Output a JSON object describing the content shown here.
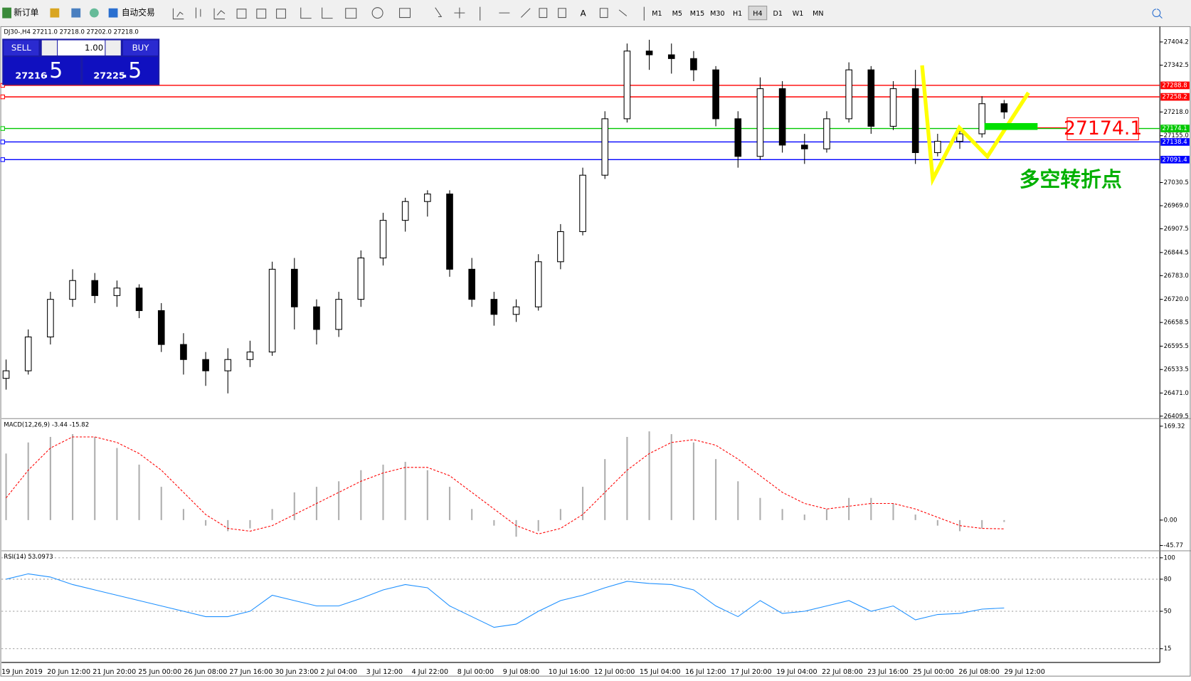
{
  "toolbar": {
    "new_order": "新订单",
    "auto_trading": "自动交易",
    "timeframes": [
      "M1",
      "M5",
      "M15",
      "M30",
      "H1",
      "H4",
      "D1",
      "W1",
      "MN"
    ],
    "active_timeframe": 5
  },
  "trade_panel": {
    "sell": "SELL",
    "lot": "1.00",
    "buy": "BUY",
    "bid_main": "27216",
    "bid_frac": ".5",
    "ask_main": "27225",
    "ask_frac": ".5"
  },
  "time_axis": [
    "19 Jun 2019",
    "20 Jun 12:00",
    "21 Jun 20:00",
    "25 Jun 00:00",
    "26 Jun 08:00",
    "27 Jun 16:00",
    "30 Jun 23:00",
    "2 Jul 04:00",
    "3 Jul 12:00",
    "4 Jul 22:00",
    "8 Jul 00:00",
    "9 Jul 08:00",
    "10 Jul 16:00",
    "12 Jul 00:00",
    "15 Jul 04:00",
    "16 Jul 12:00",
    "17 Jul 20:00",
    "19 Jul 04:00",
    "22 Jul 08:00",
    "23 Jul 16:00",
    "25 Jul 00:00",
    "26 Jul 08:00",
    "29 Jul 12:00"
  ],
  "chart_data": [
    {
      "type": "candlestick",
      "title": "DJ30-,H4  27211.0 27218.0 27202.0 27218.0",
      "candles": [
        [
          26510,
          26560,
          26480,
          26530
        ],
        [
          26530,
          26640,
          26520,
          26620
        ],
        [
          26620,
          26740,
          26600,
          26720
        ],
        [
          26720,
          26800,
          26700,
          26770
        ],
        [
          26770,
          26790,
          26710,
          26730
        ],
        [
          26730,
          26770,
          26700,
          26750
        ],
        [
          26750,
          26760,
          26670,
          26690
        ],
        [
          26690,
          26710,
          26580,
          26600
        ],
        [
          26600,
          26630,
          26520,
          26560
        ],
        [
          26560,
          26580,
          26490,
          26530
        ],
        [
          26530,
          26590,
          26470,
          26560
        ],
        [
          26560,
          26610,
          26540,
          26580
        ],
        [
          26580,
          26820,
          26570,
          26800
        ],
        [
          26800,
          26830,
          26640,
          26700
        ],
        [
          26700,
          26720,
          26600,
          26640
        ],
        [
          26640,
          26740,
          26620,
          26720
        ],
        [
          26720,
          26850,
          26700,
          26830
        ],
        [
          26830,
          26950,
          26810,
          26930
        ],
        [
          26930,
          26990,
          26900,
          26980
        ],
        [
          26980,
          27010,
          26940,
          27000
        ],
        [
          27000,
          27010,
          26780,
          26800
        ],
        [
          26800,
          26830,
          26700,
          26720
        ],
        [
          26720,
          26740,
          26650,
          26680
        ],
        [
          26680,
          26720,
          26660,
          26700
        ],
        [
          26700,
          26840,
          26690,
          26820
        ],
        [
          26820,
          26920,
          26800,
          26900
        ],
        [
          26900,
          27070,
          26890,
          27050
        ],
        [
          27050,
          27220,
          27040,
          27200
        ],
        [
          27200,
          27400,
          27190,
          27380
        ],
        [
          27380,
          27410,
          27330,
          27370
        ],
        [
          27370,
          27400,
          27320,
          27360
        ],
        [
          27360,
          27380,
          27300,
          27330
        ],
        [
          27330,
          27340,
          27180,
          27200
        ],
        [
          27200,
          27220,
          27070,
          27100
        ],
        [
          27100,
          27310,
          27090,
          27280
        ],
        [
          27280,
          27300,
          27110,
          27130
        ],
        [
          27130,
          27160,
          27080,
          27120
        ],
        [
          27120,
          27220,
          27110,
          27200
        ],
        [
          27200,
          27350,
          27190,
          27330
        ],
        [
          27330,
          27340,
          27160,
          27180
        ],
        [
          27180,
          27300,
          27170,
          27280
        ],
        [
          27280,
          27330,
          27080,
          27110
        ],
        [
          27110,
          27160,
          27100,
          27140
        ],
        [
          27140,
          27180,
          27120,
          27160
        ],
        [
          27160,
          27260,
          27150,
          27240
        ],
        [
          27240,
          27250,
          27200,
          27218
        ]
      ],
      "up_color": "#ffffff",
      "down_color": "#000000",
      "ylim": [
        26405,
        27443
      ],
      "yticks": [
        27404.2,
        27342.5,
        {
          "value": 27218.0,
          "label": "27218.0"
        },
        {
          "value": 27155.0,
          "label": "27155.0"
        },
        27030.5,
        {
          "value": 26969.0,
          "label": "26969.0"
        },
        26907.5,
        26844.5,
        {
          "value": 26783.0,
          "label": "26783.0"
        },
        {
          "value": 26720.0,
          "label": "26720.0"
        },
        26658.5,
        26595.5,
        26533.5,
        {
          "value": 26471.0,
          "label": "26471.0"
        },
        26409.5
      ],
      "levels": [
        {
          "value": 27288.8,
          "color": "#ff0000"
        },
        {
          "value": 27258.2,
          "color": "#ff0000"
        },
        {
          "value": 27174.1,
          "color": "#00c800"
        },
        {
          "value": 27138.4,
          "color": "#0000ff"
        },
        {
          "value": 27091.4,
          "color": "#0000ff"
        }
      ],
      "annotation_price": "27174.1",
      "annotation": "多空转折点"
    },
    {
      "type": "macd",
      "title": "MACD(12,26,9) -3.44 -15.82",
      "histogram": [
        120,
        140,
        150,
        155,
        150,
        130,
        100,
        60,
        20,
        -10,
        -20,
        -15,
        20,
        50,
        60,
        70,
        90,
        100,
        105,
        90,
        60,
        20,
        -10,
        -30,
        -20,
        20,
        60,
        110,
        150,
        160,
        155,
        140,
        110,
        70,
        40,
        20,
        10,
        20,
        40,
        40,
        30,
        10,
        -10,
        -20,
        -15,
        -3.44
      ],
      "signal": [
        40,
        90,
        130,
        150,
        150,
        140,
        120,
        90,
        50,
        10,
        -15,
        -20,
        -10,
        10,
        30,
        50,
        70,
        85,
        95,
        95,
        80,
        50,
        20,
        -10,
        -25,
        -15,
        10,
        50,
        90,
        120,
        140,
        145,
        135,
        110,
        80,
        50,
        30,
        20,
        25,
        30,
        30,
        20,
        5,
        -10,
        -15,
        -15.82
      ],
      "bar_color": "#b0b0b0",
      "signal_color": "#ff0000",
      "ylim": [
        -45.77,
        169.32
      ],
      "yticks": [
        169.32,
        {
          "value": 0,
          "label": "0.00"
        },
        -45.77
      ]
    },
    {
      "type": "line",
      "title": "RSI(14) 53.0973",
      "values": [
        80,
        85,
        82,
        75,
        70,
        65,
        60,
        55,
        50,
        45,
        45,
        50,
        65,
        60,
        55,
        55,
        62,
        70,
        75,
        72,
        55,
        45,
        35,
        38,
        50,
        60,
        65,
        72,
        78,
        76,
        75,
        70,
        55,
        45,
        60,
        48,
        50,
        55,
        60,
        50,
        55,
        42,
        47,
        48,
        52,
        53.0973
      ],
      "color": "#1e90ff",
      "ylim": [
        5,
        103
      ],
      "yticks": [
        100,
        80,
        50,
        15
      ]
    }
  ]
}
